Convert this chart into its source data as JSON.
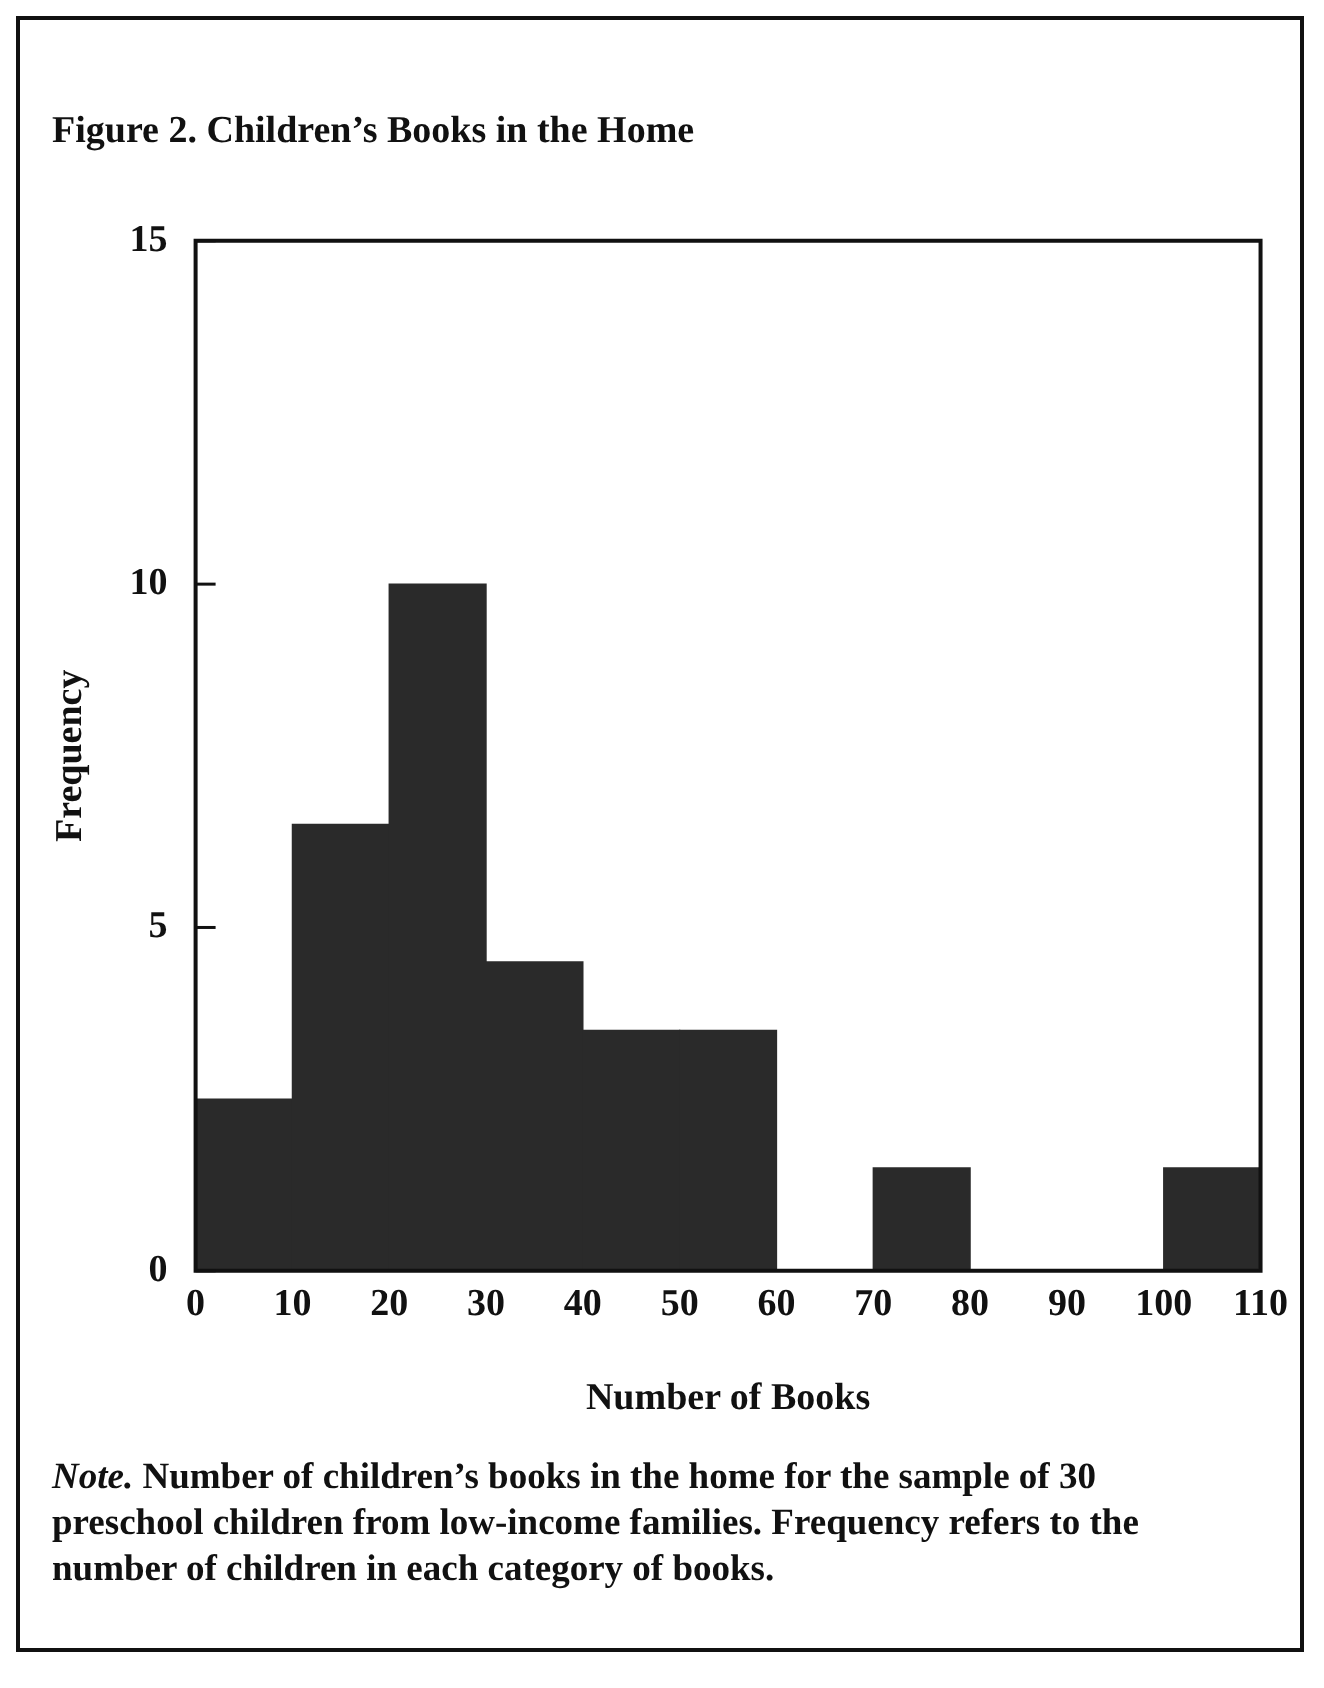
{
  "chart_data": {
    "type": "histogram",
    "title": "Figure 2. Children’s Books in the Home",
    "xlabel": "Number of Books",
    "ylabel": "Frequency",
    "bins": [
      0,
      10,
      20,
      30,
      40,
      50,
      60,
      70,
      80,
      90,
      100,
      110
    ],
    "values": [
      2.5,
      6.5,
      10,
      4.5,
      3.5,
      3.5,
      0,
      1.5,
      0,
      0,
      1.5
    ],
    "color": "#2a2a2a",
    "xlim": [
      0,
      110
    ],
    "xticks": [
      0,
      10,
      20,
      30,
      40,
      50,
      60,
      70,
      80,
      90,
      100,
      110
    ],
    "ylim": [
      0,
      15
    ],
    "yticks": [
      0,
      5,
      10,
      15
    ],
    "grid": false,
    "legend": false,
    "annotations": [
      "Note. Number of children’s books in the home for the sample of 30 preschool children from low-income families. Frequency refers to the number of children in each category of books."
    ]
  }
}
